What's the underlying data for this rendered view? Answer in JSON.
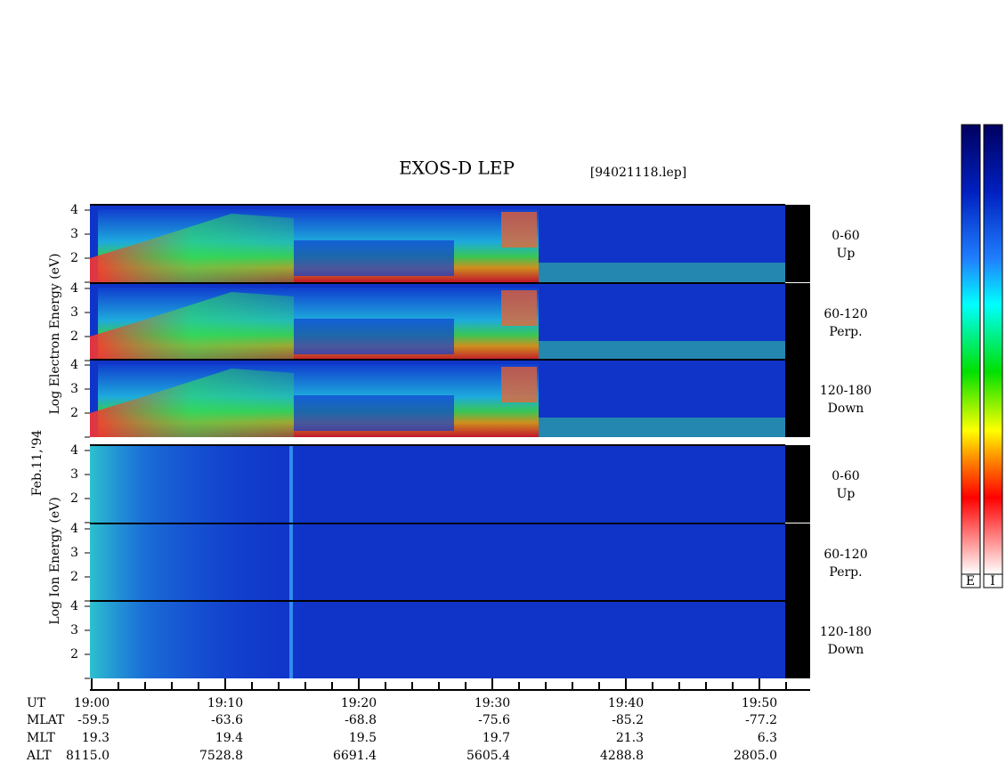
{
  "title": "EXOS-D LEP",
  "file": "[94021118.lep]",
  "date_label": "Feb.11,'94",
  "energy_ticks": [
    "4",
    "3",
    "2"
  ],
  "electron": {
    "axis_label": "Log Electron Energy (eV)",
    "panels": [
      {
        "range": "0-60",
        "direction": "Up"
      },
      {
        "range": "60-120",
        "direction": "Perp."
      },
      {
        "range": "120-180",
        "direction": "Down"
      }
    ]
  },
  "ion": {
    "axis_label": "Log Ion Energy (eV)",
    "panels": [
      {
        "range": "0-60",
        "direction": "Up"
      },
      {
        "range": "60-120",
        "direction": "Perp."
      },
      {
        "range": "120-180",
        "direction": "Down"
      }
    ]
  },
  "rows": [
    {
      "name": "UT",
      "values": [
        "19:00",
        "19:10",
        "19:20",
        "19:30",
        "19:40",
        "19:50"
      ]
    },
    {
      "name": "MLAT",
      "values": [
        "-59.5",
        "-63.6",
        "-68.8",
        "-75.6",
        "-85.2",
        "-77.2"
      ]
    },
    {
      "name": "MLT",
      "values": [
        "19.3",
        "19.4",
        "19.5",
        "19.7",
        "21.3",
        "6.3"
      ]
    },
    {
      "name": "ALT",
      "values": [
        "8115.0",
        "7528.8",
        "6691.4",
        "5605.4",
        "4288.8",
        "2805.0"
      ]
    }
  ],
  "colorbars": [
    "E",
    "I"
  ]
}
